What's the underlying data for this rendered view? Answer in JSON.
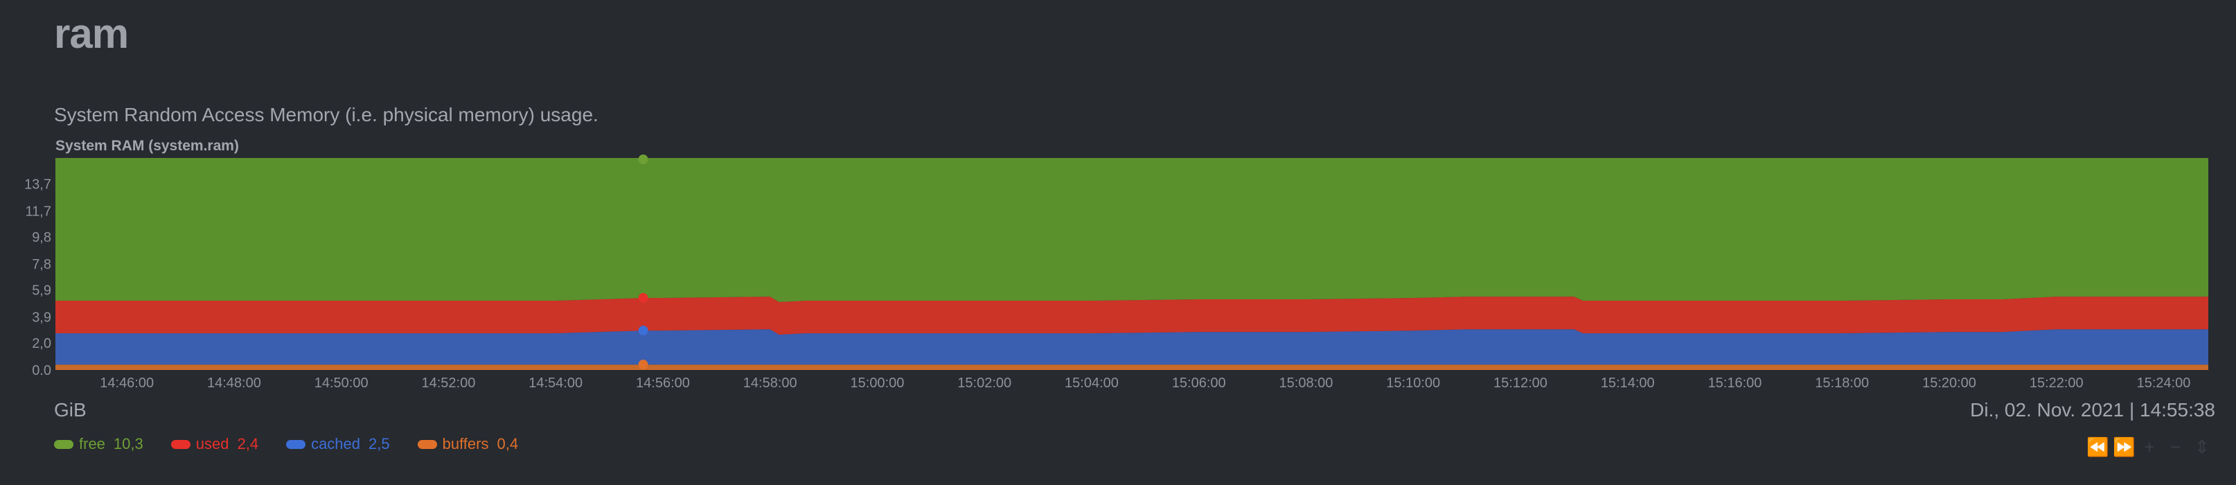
{
  "section": {
    "title": "ram",
    "description": "System Random Access Memory (i.e. physical memory) usage."
  },
  "chart": {
    "title": "System RAM (system.ram)",
    "units": "GiB",
    "datetime": "Di., 02. Nov. 2021 | 14:55:38"
  },
  "legend": [
    {
      "name": "free",
      "value": "10,3",
      "color": "#6ea034"
    },
    {
      "name": "used",
      "value": "2,4",
      "color": "#e8302a"
    },
    {
      "name": "cached",
      "value": "2,5",
      "color": "#3d6fd8"
    },
    {
      "name": "buffers",
      "value": "0,4",
      "color": "#e0702a"
    }
  ],
  "toolbar": {
    "icons": [
      "rewind-icon",
      "fast-forward-icon",
      "zoom-in-icon",
      "zoom-out-icon",
      "resize-icon"
    ]
  },
  "chart_data": {
    "type": "area",
    "stacked": true,
    "title": "System RAM (system.ram)",
    "ylabel": "GiB",
    "ylim": [
      0,
      15.6
    ],
    "yticks": [
      "0.0",
      "2,0",
      "3,9",
      "5,9",
      "7,8",
      "9,8",
      "11,7",
      "13,7"
    ],
    "ytick_values": [
      0.0,
      2.0,
      3.9,
      5.9,
      7.8,
      9.8,
      11.7,
      13.7
    ],
    "x": [
      "14:44:40",
      "14:46:00",
      "14:48:00",
      "14:50:00",
      "14:52:00",
      "14:54:00",
      "14:55:38",
      "14:56:00",
      "14:58:00",
      "14:58:10",
      "14:58:40",
      "15:00:00",
      "15:02:00",
      "15:04:00",
      "15:06:00",
      "15:08:00",
      "15:10:00",
      "15:11:00",
      "15:12:00",
      "15:13:00",
      "15:13:10",
      "15:14:00",
      "15:16:00",
      "15:18:00",
      "15:20:00",
      "15:21:00",
      "15:22:00",
      "15:24:00",
      "15:24:50"
    ],
    "xticks": [
      "14:46:00",
      "14:48:00",
      "14:50:00",
      "14:52:00",
      "14:54:00",
      "14:56:00",
      "14:58:00",
      "15:00:00",
      "15:02:00",
      "15:04:00",
      "15:06:00",
      "15:08:00",
      "15:10:00",
      "15:12:00",
      "15:14:00",
      "15:16:00",
      "15:18:00",
      "15:20:00",
      "15:22:00",
      "15:24:00"
    ],
    "series": [
      {
        "name": "buffers",
        "color": "#c86a2a",
        "values": [
          0.4,
          0.4,
          0.4,
          0.4,
          0.4,
          0.4,
          0.4,
          0.4,
          0.4,
          0.4,
          0.4,
          0.4,
          0.4,
          0.4,
          0.4,
          0.4,
          0.4,
          0.4,
          0.4,
          0.4,
          0.4,
          0.4,
          0.4,
          0.4,
          0.4,
          0.4,
          0.4,
          0.4,
          0.4
        ]
      },
      {
        "name": "cached",
        "color": "#3a5eb0",
        "values": [
          2.3,
          2.3,
          2.3,
          2.3,
          2.3,
          2.3,
          2.5,
          2.5,
          2.6,
          2.2,
          2.3,
          2.3,
          2.3,
          2.3,
          2.4,
          2.4,
          2.5,
          2.6,
          2.6,
          2.6,
          2.3,
          2.3,
          2.3,
          2.3,
          2.4,
          2.4,
          2.6,
          2.6,
          2.6
        ]
      },
      {
        "name": "used",
        "color": "#cc3428",
        "values": [
          2.4,
          2.4,
          2.4,
          2.4,
          2.4,
          2.4,
          2.4,
          2.4,
          2.4,
          2.4,
          2.4,
          2.4,
          2.4,
          2.4,
          2.4,
          2.4,
          2.4,
          2.4,
          2.4,
          2.4,
          2.4,
          2.4,
          2.4,
          2.4,
          2.4,
          2.4,
          2.4,
          2.4,
          2.4
        ]
      },
      {
        "name": "free",
        "color": "#5b912c",
        "values": [
          10.5,
          10.5,
          10.5,
          10.5,
          10.5,
          10.5,
          10.3,
          10.3,
          10.2,
          10.6,
          10.5,
          10.5,
          10.5,
          10.5,
          10.4,
          10.4,
          10.3,
          10.2,
          10.2,
          10.2,
          10.5,
          10.5,
          10.5,
          10.5,
          10.4,
          10.4,
          10.2,
          10.2,
          10.2
        ]
      }
    ],
    "cursor_x": "14:55:38",
    "grid": false,
    "legend_position": "bottom-left"
  }
}
